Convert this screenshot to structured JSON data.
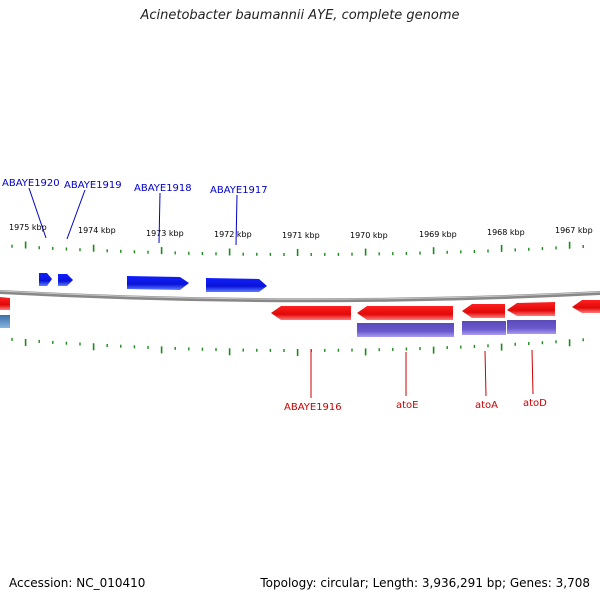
{
  "title": "Acinetobacter baumannii AYE, complete genome",
  "accession": "Accession: NC_010410",
  "summary": "Topology: circular; Length: 3,936,291 bp; Genes: 3,708",
  "colors": {
    "forward_gene": "#0a14e6",
    "reverse_gene": "#e60f0f",
    "reverse_feature": "#6a5acd",
    "tick": "#1a8a1a",
    "backbone": "#888888",
    "forward_label": "#0000cc",
    "reverse_label": "#cc0000"
  },
  "scale_labels": [
    "1975 kbp",
    "1974 kbp",
    "1973 kbp",
    "1972 kbp",
    "1971 kbp",
    "1970 kbp",
    "1969 kbp",
    "1968 kbp",
    "1967 kbp"
  ],
  "forward_labels": [
    "ABAYE1920",
    "ABAYE1919",
    "ABAYE1918",
    "ABAYE1917"
  ],
  "reverse_labels": [
    "ABAYE1916",
    "atoE",
    "atoA",
    "atoD"
  ]
}
